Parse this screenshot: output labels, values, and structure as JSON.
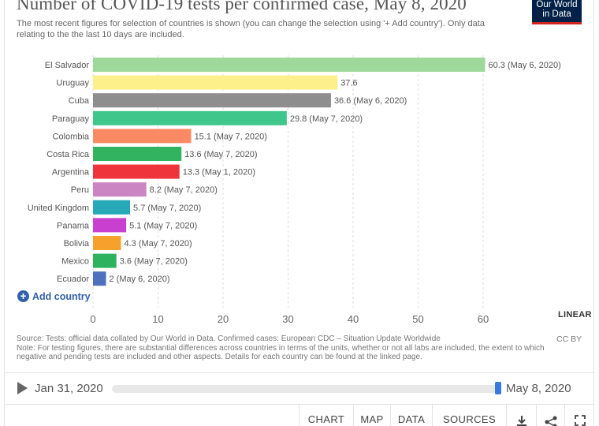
{
  "header": {
    "title": "Number of COVID-19 tests per confirmed case, May 8, 2020",
    "subtitle": "The most recent figures for selection of countries is shown (you can change the selection using '+ Add country'). Only data relating to the the last 10 days are included.",
    "logo_line1": "Our World",
    "logo_line2": "in Data"
  },
  "controls": {
    "add_country": "Add country",
    "add_icon": "+",
    "scale": "LINEAR"
  },
  "source": {
    "text": "Source: Tests: official data collated by Our World in Data. Confirmed cases: European CDC – Situation Update Worldwide",
    "note": "Note: For testing figures, there are substantial differences across countries in terms of the units, whether or not all labs are included, the extent to which negative and pending tests are included and other aspects. Details for each country can be found at the linked page.",
    "license": "CC BY"
  },
  "timeline": {
    "start": "Jan 31, 2020",
    "end": "May 8, 2020",
    "position": 1.0
  },
  "tabs": {
    "chart": "CHART",
    "map": "MAP",
    "data": "DATA",
    "sources": "SOURCES"
  },
  "chart_data": {
    "type": "bar",
    "orientation": "horizontal",
    "xlim": [
      0,
      60
    ],
    "xticks": [
      0,
      10,
      20,
      30,
      40,
      50,
      60
    ],
    "grid": true,
    "bars": [
      {
        "label": "El Salvador",
        "value": 60.3,
        "annotation": "60.3 (May 6, 2020)",
        "color": "#9fd89b"
      },
      {
        "label": "Uruguay",
        "value": 37.6,
        "annotation": "37.6",
        "color": "#fdf08a"
      },
      {
        "label": "Cuba",
        "value": 36.6,
        "annotation": "36.6 (May 6, 2020)",
        "color": "#8e8e8e"
      },
      {
        "label": "Paraguay",
        "value": 29.8,
        "annotation": "29.8 (May 7, 2020)",
        "color": "#3fc68a"
      },
      {
        "label": "Colombia",
        "value": 15.1,
        "annotation": "15.1 (May 7, 2020)",
        "color": "#fa8a63"
      },
      {
        "label": "Costa Rica",
        "value": 13.6,
        "annotation": "13.6 (May 7, 2020)",
        "color": "#31b35f"
      },
      {
        "label": "Argentina",
        "value": 13.3,
        "annotation": "13.3 (May 1, 2020)",
        "color": "#f0343c"
      },
      {
        "label": "Peru",
        "value": 8.2,
        "annotation": "8.2 (May 7, 2020)",
        "color": "#cb85c3"
      },
      {
        "label": "United Kingdom",
        "value": 5.7,
        "annotation": "5.7 (May 7, 2020)",
        "color": "#28a9b7"
      },
      {
        "label": "Panama",
        "value": 5.1,
        "annotation": "5.1 (May 7, 2020)",
        "color": "#c93fcf"
      },
      {
        "label": "Bolivia",
        "value": 4.3,
        "annotation": "4.3 (May 7, 2020)",
        "color": "#f5a12c"
      },
      {
        "label": "Mexico",
        "value": 3.6,
        "annotation": "3.6 (May 7, 2020)",
        "color": "#2fb25e"
      },
      {
        "label": "Ecuador",
        "value": 2,
        "annotation": "2 (May 6, 2020)",
        "color": "#4f6fbf"
      }
    ]
  }
}
